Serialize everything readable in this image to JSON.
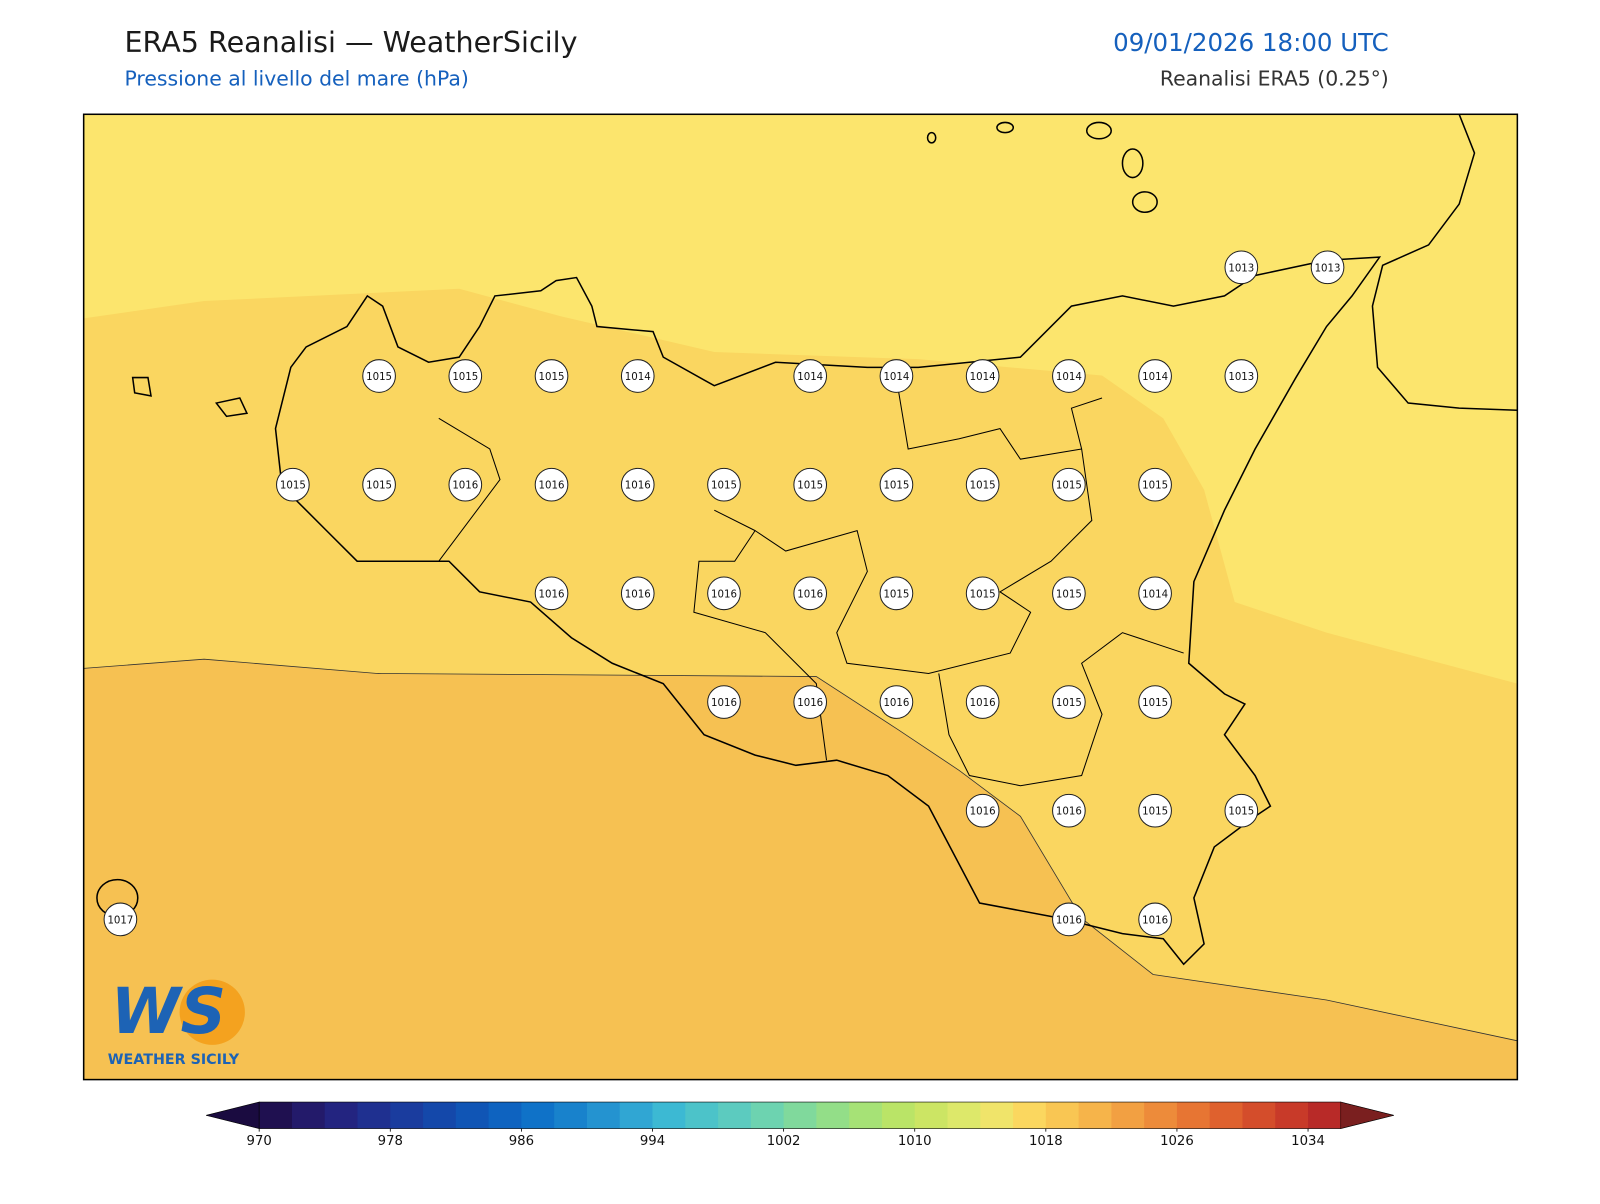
{
  "header": {
    "title": "ERA5 Reanalisi — WeatherSicily",
    "subtitle": "Pressione al livello del mare (hPa)",
    "datetime": "09/01/2026 18:00 UTC",
    "source": "Reanalisi ERA5 (0.25°)"
  },
  "map": {
    "pressure_labels": [
      [
        null,
        null,
        null,
        null,
        null,
        null,
        null,
        null,
        null,
        null,
        null,
        null,
        null,
        1013,
        1013
      ],
      [
        null,
        null,
        null,
        1015,
        1015,
        1015,
        1014,
        null,
        1014,
        1014,
        1014,
        1014,
        1014,
        1013,
        null
      ],
      [
        null,
        null,
        1015,
        1015,
        1016,
        1016,
        1016,
        1015,
        1015,
        1015,
        1015,
        1015,
        1015,
        null,
        null
      ],
      [
        null,
        null,
        null,
        null,
        null,
        1016,
        1016,
        1016,
        1016,
        1015,
        1015,
        1015,
        1014,
        null,
        null
      ],
      [
        null,
        null,
        null,
        null,
        null,
        null,
        null,
        1016,
        1016,
        1016,
        1016,
        1015,
        1015,
        null,
        null
      ],
      [
        null,
        null,
        null,
        null,
        null,
        null,
        null,
        null,
        null,
        null,
        1016,
        1016,
        1015,
        1015,
        null
      ],
      [
        1017,
        null,
        null,
        null,
        null,
        null,
        null,
        null,
        null,
        null,
        null,
        1016,
        1016,
        null,
        null
      ]
    ]
  },
  "colorbar": {
    "range": [
      970,
      1036
    ],
    "ticks": [
      970,
      978,
      986,
      994,
      1002,
      1010,
      1018,
      1026,
      1034
    ],
    "colors": [
      "#1f1050",
      "#231a6a",
      "#232480",
      "#1f3090",
      "#1a3c9e",
      "#1448aa",
      "#1055b5",
      "#0e63c0",
      "#0f72c8",
      "#1882cc",
      "#2493d0",
      "#30a6d3",
      "#3cb9d3",
      "#4cc3c9",
      "#5ccbbf",
      "#6dd3b0",
      "#80d99c",
      "#93de88",
      "#a6e276",
      "#bae467",
      "#cce564",
      "#dde86a",
      "#f0e46a",
      "#fbd75f",
      "#f9c653",
      "#f6b44a",
      "#f2a042",
      "#ed8b3a",
      "#e77533",
      "#df612e",
      "#d44d2b",
      "#c83a29",
      "#b82a28"
    ],
    "under_color": "#1a0b40",
    "over_color": "#7a1f1f"
  },
  "logo": {
    "initials": "WS",
    "text": "WEATHER SICILY"
  }
}
